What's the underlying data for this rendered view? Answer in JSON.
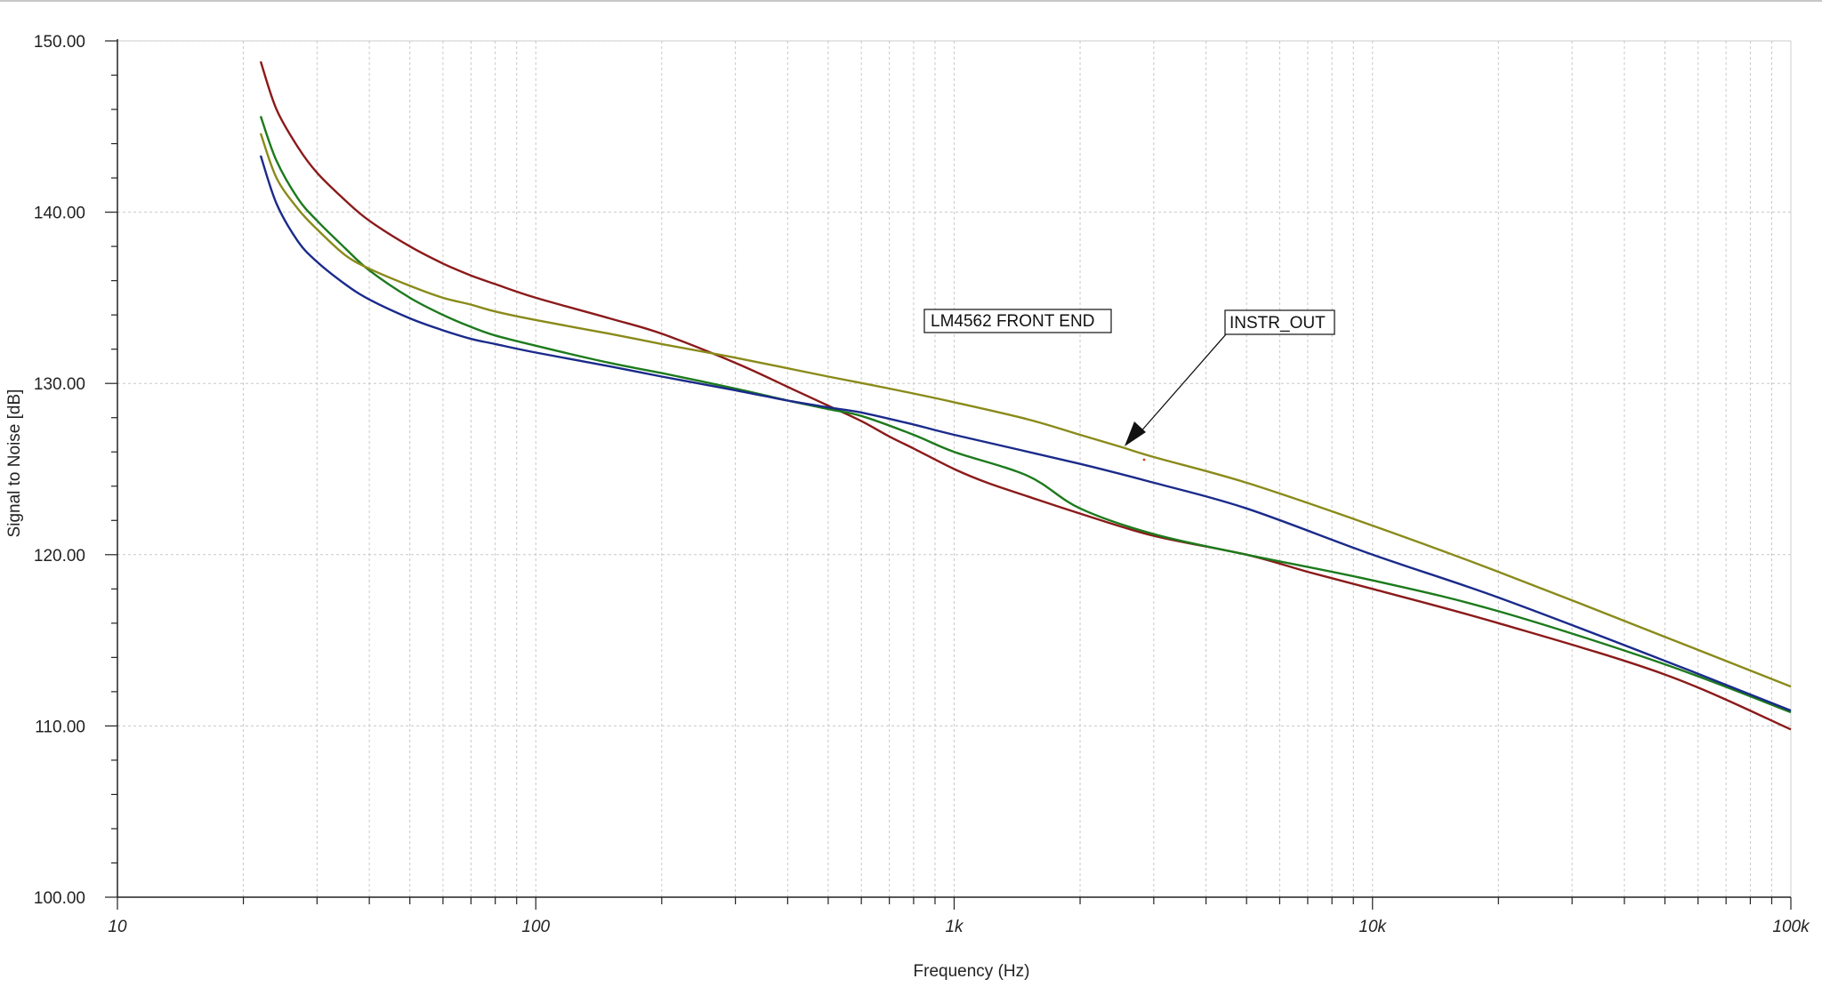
{
  "chart_data": {
    "type": "line",
    "xlabel": "Frequency (Hz)",
    "ylabel": "Signal to Noise [dB]",
    "xscale": "log",
    "xlim": [
      10,
      100000
    ],
    "ylim": [
      100,
      150
    ],
    "grid": true,
    "yticks": [
      "100.00",
      "110.00",
      "120.00",
      "130.00",
      "140.00",
      "150.00"
    ],
    "xticks": [
      {
        "value": 10,
        "label": "10"
      },
      {
        "value": 100,
        "label": "100"
      },
      {
        "value": 1000,
        "label": "1k"
      },
      {
        "value": 10000,
        "label": "10k"
      },
      {
        "value": 100000,
        "label": "100k"
      }
    ],
    "annotations": [
      {
        "text": "LM4562 FRONT END"
      },
      {
        "text": "INSTR_OUT",
        "arrow_to": {
          "x": 2500,
          "y": 126.2
        }
      }
    ],
    "series": [
      {
        "color": "#8b1a1a",
        "x": [
          22,
          24,
          27,
          30,
          35,
          40,
          50,
          60,
          70,
          80,
          100,
          150,
          200,
          300,
          400,
          500,
          600,
          700,
          800,
          1000,
          1200,
          1500,
          2000,
          3000,
          5000,
          7000,
          10000,
          20000,
          50000,
          100000
        ],
        "y": [
          148.8,
          146.0,
          143.8,
          142.3,
          140.7,
          139.5,
          138.0,
          137.0,
          136.3,
          135.8,
          135.0,
          133.8,
          132.9,
          131.2,
          129.8,
          128.7,
          127.8,
          126.9,
          126.2,
          125.0,
          124.2,
          123.4,
          122.4,
          121.1,
          120.0,
          119.0,
          118.0,
          116.0,
          113.0,
          109.8
        ]
      },
      {
        "color": "#1c7a1c",
        "x": [
          22,
          24,
          27,
          30,
          35,
          40,
          50,
          60,
          70,
          80,
          100,
          150,
          200,
          300,
          400,
          500,
          600,
          800,
          1000,
          1500,
          2000,
          3000,
          5000,
          10000,
          20000,
          50000,
          100000
        ],
        "y": [
          145.6,
          143.0,
          140.8,
          139.5,
          137.9,
          136.6,
          135.0,
          134.0,
          133.3,
          132.8,
          132.2,
          131.2,
          130.6,
          129.7,
          129.0,
          128.5,
          128.1,
          127.0,
          126.0,
          124.6,
          122.7,
          121.2,
          120.0,
          118.5,
          116.7,
          113.6,
          110.8
        ]
      },
      {
        "color": "#1a2a8b",
        "x": [
          22,
          24,
          27,
          30,
          35,
          40,
          50,
          60,
          70,
          80,
          100,
          150,
          200,
          300,
          400,
          500,
          600,
          800,
          1000,
          2000,
          3000,
          5000,
          10000,
          20000,
          50000,
          100000
        ],
        "y": [
          143.3,
          140.5,
          138.3,
          137.1,
          135.8,
          134.9,
          133.8,
          133.1,
          132.6,
          132.3,
          131.8,
          131.0,
          130.4,
          129.6,
          129.0,
          128.6,
          128.3,
          127.6,
          127.0,
          125.3,
          124.2,
          122.7,
          120.0,
          117.5,
          113.8,
          110.9
        ]
      },
      {
        "color": "#8a8a1a",
        "x": [
          22,
          24,
          27,
          30,
          35,
          40,
          50,
          60,
          70,
          80,
          100,
          150,
          200,
          300,
          500,
          700,
          1000,
          1500,
          2000,
          2500,
          3000,
          5000,
          10000,
          20000,
          50000,
          100000
        ],
        "y": [
          144.6,
          142.0,
          140.2,
          139.0,
          137.5,
          136.7,
          135.7,
          135.0,
          134.6,
          134.2,
          133.7,
          132.9,
          132.3,
          131.5,
          130.4,
          129.7,
          128.9,
          127.9,
          127.0,
          126.3,
          125.7,
          124.2,
          121.7,
          119.0,
          115.2,
          112.3
        ]
      }
    ]
  }
}
